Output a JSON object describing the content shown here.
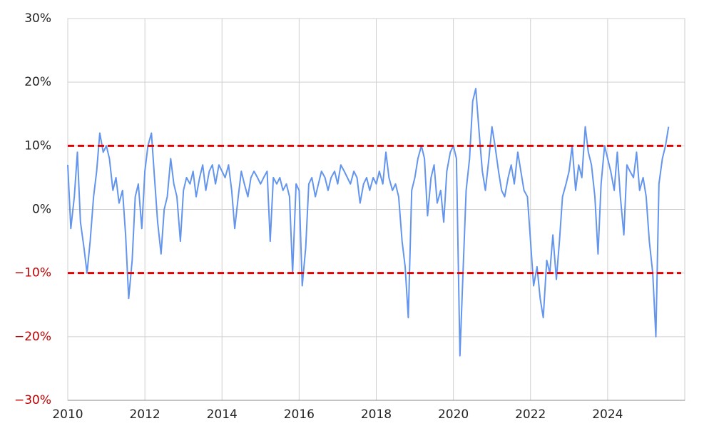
{
  "chart_data": {
    "type": "line",
    "x": [
      2010,
      2010.08,
      2010.17,
      2010.25,
      2010.33,
      2010.42,
      2010.5,
      2010.58,
      2010.67,
      2010.75,
      2010.83,
      2010.92,
      2011,
      2011.08,
      2011.17,
      2011.25,
      2011.33,
      2011.42,
      2011.5,
      2011.58,
      2011.67,
      2011.75,
      2011.83,
      2011.92,
      2012,
      2012.08,
      2012.17,
      2012.25,
      2012.33,
      2012.42,
      2012.5,
      2012.58,
      2012.67,
      2012.75,
      2012.83,
      2012.92,
      2013,
      2013.08,
      2013.17,
      2013.25,
      2013.33,
      2013.42,
      2013.5,
      2013.58,
      2013.67,
      2013.75,
      2013.83,
      2013.92,
      2014,
      2014.08,
      2014.17,
      2014.25,
      2014.33,
      2014.42,
      2014.5,
      2014.58,
      2014.67,
      2014.75,
      2014.83,
      2014.92,
      2015,
      2015.08,
      2015.17,
      2015.25,
      2015.33,
      2015.42,
      2015.5,
      2015.58,
      2015.67,
      2015.75,
      2015.83,
      2015.92,
      2016,
      2016.08,
      2016.17,
      2016.25,
      2016.33,
      2016.42,
      2016.5,
      2016.58,
      2016.67,
      2016.75,
      2016.83,
      2016.92,
      2017,
      2017.08,
      2017.17,
      2017.25,
      2017.33,
      2017.42,
      2017.5,
      2017.58,
      2017.67,
      2017.75,
      2017.83,
      2017.92,
      2018,
      2018.08,
      2018.17,
      2018.25,
      2018.33,
      2018.42,
      2018.5,
      2018.58,
      2018.67,
      2018.75,
      2018.83,
      2018.92,
      2019,
      2019.08,
      2019.17,
      2019.25,
      2019.33,
      2019.42,
      2019.5,
      2019.58,
      2019.67,
      2019.75,
      2019.83,
      2019.92,
      2020,
      2020.08,
      2020.17,
      2020.25,
      2020.33,
      2020.42,
      2020.5,
      2020.58,
      2020.67,
      2020.75,
      2020.83,
      2020.92,
      2021,
      2021.08,
      2021.17,
      2021.25,
      2021.33,
      2021.42,
      2021.5,
      2021.58,
      2021.67,
      2021.75,
      2021.83,
      2021.92,
      2022,
      2022.08,
      2022.17,
      2022.25,
      2022.33,
      2022.42,
      2022.5,
      2022.58,
      2022.67,
      2022.75,
      2022.83,
      2022.92,
      2023,
      2023.08,
      2023.17,
      2023.25,
      2023.33,
      2023.42,
      2023.5,
      2023.58,
      2023.67,
      2023.75,
      2023.83,
      2023.92,
      2024,
      2024.08,
      2024.17,
      2024.25,
      2024.33,
      2024.42,
      2024.5,
      2024.58,
      2024.67,
      2024.75,
      2024.83,
      2024.92,
      2025,
      2025.08,
      2025.17,
      2025.25,
      2025.33,
      2025.42,
      2025.5,
      2025.58
    ],
    "series": [
      {
        "color": "#6495ed",
        "values": [
          7,
          -3,
          2,
          9,
          -2,
          -6,
          -10,
          -5,
          2,
          6,
          12,
          9,
          10,
          8,
          3,
          5,
          1,
          3,
          -4,
          -14,
          -8,
          2,
          4,
          -3,
          6,
          10,
          12,
          5,
          -2,
          -7,
          0,
          2,
          8,
          4,
          2,
          -5,
          3,
          5,
          4,
          6,
          2,
          5,
          7,
          3,
          6,
          7,
          4,
          7,
          6,
          5,
          7,
          3,
          -3,
          2,
          6,
          4,
          2,
          5,
          6,
          5,
          4,
          5,
          6,
          -5,
          5,
          4,
          5,
          3,
          4,
          2,
          -10,
          4,
          3,
          -12,
          -6,
          4,
          5,
          2,
          4,
          6,
          5,
          3,
          5,
          6,
          4,
          7,
          6,
          5,
          4,
          6,
          5,
          1,
          4,
          5,
          3,
          5,
          4,
          6,
          4,
          9,
          5,
          3,
          4,
          2,
          -5,
          -9,
          -17,
          3,
          5,
          8,
          10,
          8,
          -1,
          5,
          7,
          1,
          3,
          -2,
          6,
          9,
          10,
          8,
          -23,
          -10,
          3,
          8,
          17,
          19,
          12,
          6,
          3,
          8,
          13,
          10,
          6,
          3,
          2,
          5,
          7,
          4,
          9,
          6,
          3,
          2,
          -5,
          -12,
          -9,
          -14,
          -17,
          -8,
          -10,
          -4,
          -11,
          -5,
          2,
          4,
          6,
          10,
          3,
          7,
          5,
          13,
          9,
          7,
          2,
          -7,
          4,
          10,
          8,
          6,
          3,
          9,
          2,
          -4,
          7,
          6,
          5,
          9,
          3,
          5,
          2,
          -5,
          -10,
          -20,
          4,
          8,
          10,
          13
        ]
      }
    ],
    "xlim": [
      2010,
      2026
    ],
    "xticks": [
      2010,
      2012,
      2014,
      2016,
      2018,
      2020,
      2022,
      2024
    ],
    "ylim": [
      -30,
      30
    ],
    "yticks": [
      {
        "value": -30,
        "label": "−30%"
      },
      {
        "value": -20,
        "label": "−20%"
      },
      {
        "value": -10,
        "label": "−10%"
      },
      {
        "value": 0,
        "label": "0%"
      },
      {
        "value": 10,
        "label": "10%"
      },
      {
        "value": 20,
        "label": "20%"
      },
      {
        "value": 30,
        "label": "30%"
      }
    ],
    "negative_label_color": "#c00000",
    "reference_lines": [
      {
        "value": 10,
        "color": "#e00000"
      },
      {
        "value": -10,
        "color": "#e00000"
      }
    ],
    "grid": true
  }
}
